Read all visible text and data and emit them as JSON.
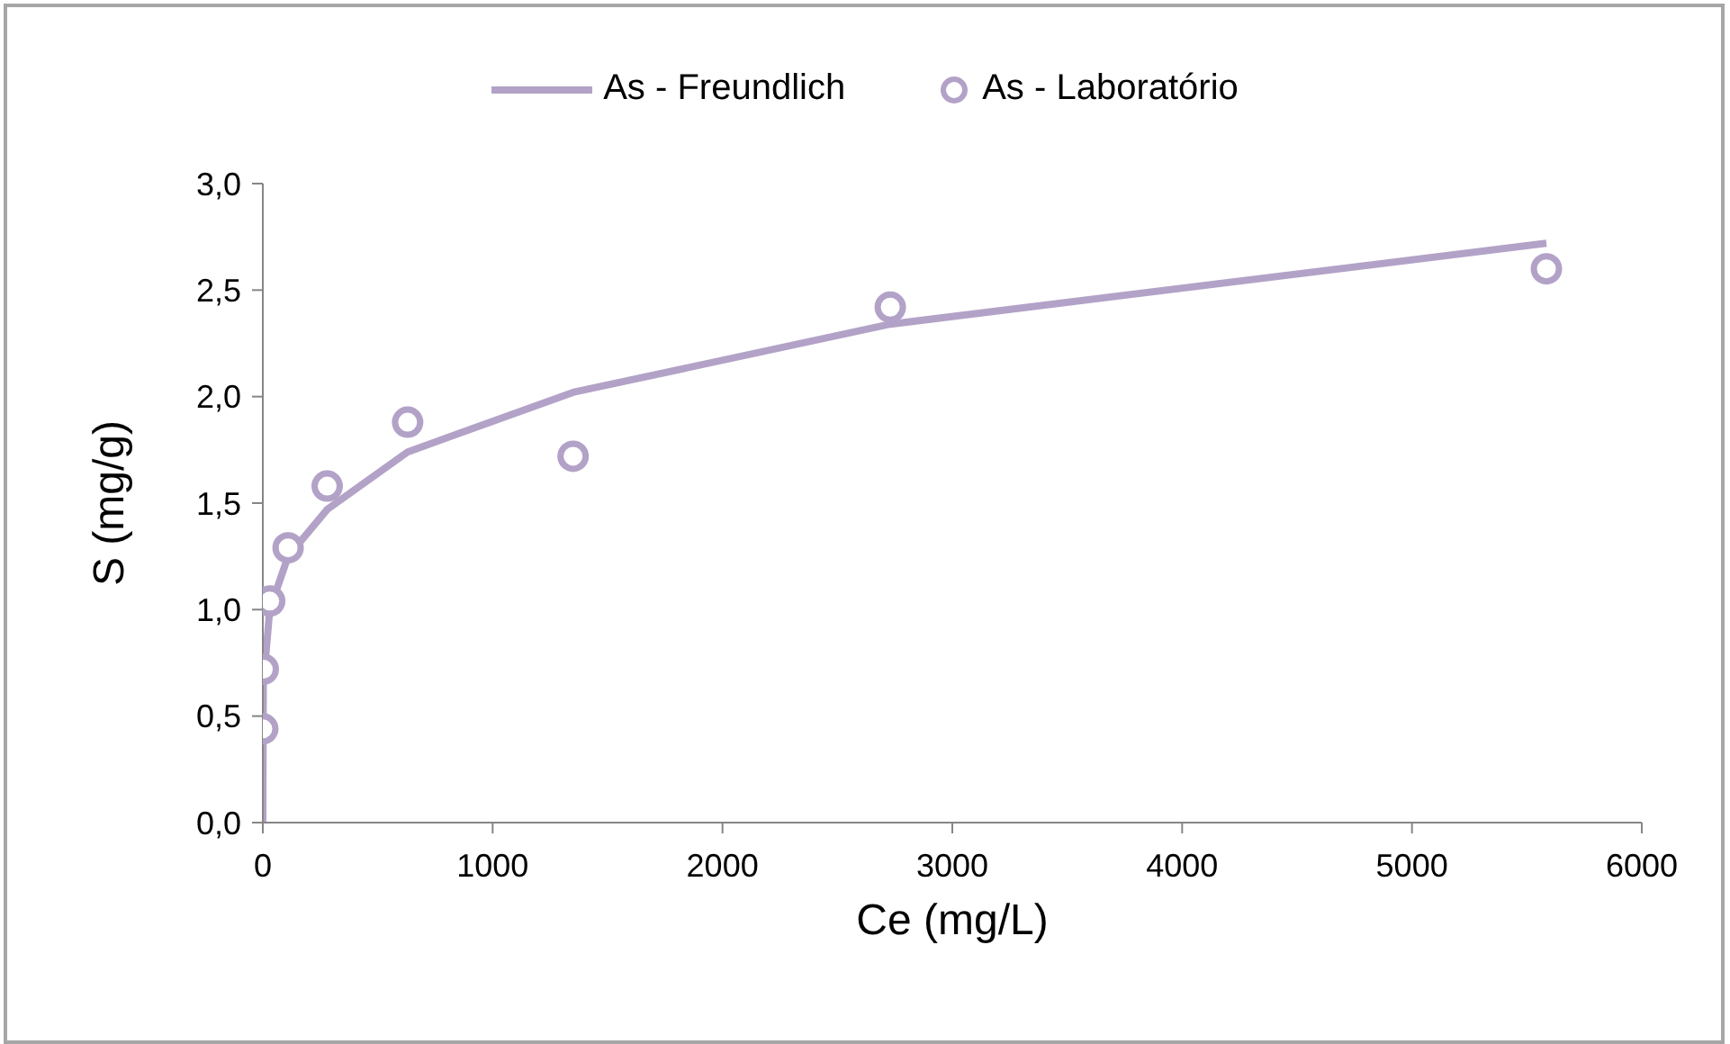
{
  "chart_data": {
    "type": "line",
    "xlabel": "Ce (mg/L)",
    "ylabel": "S (mg/g)",
    "legend": "top",
    "grid": false,
    "xlim": [
      0,
      6000
    ],
    "xticks": [
      0,
      1000,
      2000,
      3000,
      4000,
      5000,
      6000
    ],
    "ylim": [
      0,
      3
    ],
    "yticks": [
      {
        "value": 0,
        "label": "0,0"
      },
      {
        "value": 0.5,
        "label": "0,5"
      },
      {
        "value": 1,
        "label": "1,0"
      },
      {
        "value": 1.5,
        "label": "1,5"
      },
      {
        "value": 2,
        "label": "2,0"
      },
      {
        "value": 2.5,
        "label": "2,5"
      },
      {
        "value": 3,
        "label": "3,0"
      }
    ],
    "series": [
      {
        "name": "As - Freundlich",
        "type": "line",
        "color": "#b3a2c7",
        "marker": "none",
        "x": [
          0,
          2,
          30,
          110,
          280,
          630,
          1350,
          2730,
          5585
        ],
        "values": [
          0,
          0.65,
          1.0,
          1.25,
          1.47,
          1.74,
          2.02,
          2.34,
          2.72
        ]
      },
      {
        "name": "As - Laboratório",
        "type": "scatter",
        "color": "#b3a2c7",
        "marker": "circle",
        "x": [
          0,
          2,
          30,
          110,
          280,
          630,
          1350,
          2730,
          5585
        ],
        "values": [
          0.44,
          0.72,
          1.04,
          1.29,
          1.58,
          1.88,
          1.72,
          2.42,
          2.6
        ]
      }
    ]
  }
}
